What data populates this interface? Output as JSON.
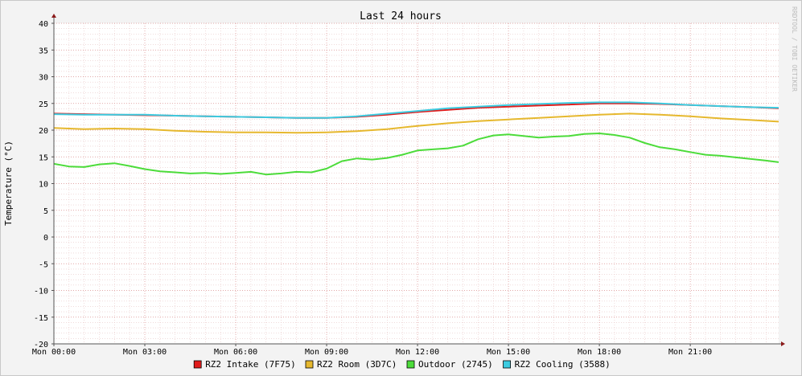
{
  "chart_data": {
    "type": "line",
    "title": "Last 24 hours",
    "ylabel": "Temperature (°C)",
    "xlabel": "",
    "watermark": "RRDTOOL / TOBI OETIKER",
    "ylim": [
      -20,
      40
    ],
    "xlim": [
      0,
      1435
    ],
    "y_ticks": [
      "40",
      "35",
      "30",
      "25",
      "20",
      "15",
      "10",
      "5",
      "0",
      "-5",
      "-10",
      "-15",
      "-20"
    ],
    "x_ticks": [
      {
        "at": 0,
        "label": "Mon 00:00"
      },
      {
        "at": 180,
        "label": "Mon 03:00"
      },
      {
        "at": 360,
        "label": "Mon 06:00"
      },
      {
        "at": 540,
        "label": "Mon 09:00"
      },
      {
        "at": 720,
        "label": "Mon 12:00"
      },
      {
        "at": 900,
        "label": "Mon 15:00"
      },
      {
        "at": 1080,
        "label": "Mon 18:00"
      },
      {
        "at": 1260,
        "label": "Mon 21:00"
      }
    ],
    "grid": true,
    "legend_position": "bottom",
    "series": [
      {
        "name": "RZ2 Intake (7F75)",
        "color": "#e11b1b",
        "x": [
          0,
          60,
          120,
          180,
          240,
          300,
          360,
          420,
          480,
          540,
          600,
          660,
          720,
          780,
          840,
          900,
          960,
          1020,
          1080,
          1140,
          1200,
          1260,
          1320,
          1380,
          1435
        ],
        "values": [
          23.1,
          23.0,
          22.9,
          22.8,
          22.7,
          22.6,
          22.5,
          22.4,
          22.3,
          22.3,
          22.5,
          22.9,
          23.4,
          23.8,
          24.2,
          24.4,
          24.6,
          24.8,
          25.0,
          25.0,
          24.9,
          24.7,
          24.5,
          24.3,
          24.1
        ]
      },
      {
        "name": "RZ2 Room (3D7C)",
        "color": "#e6b82e",
        "x": [
          0,
          60,
          120,
          180,
          240,
          300,
          360,
          420,
          480,
          540,
          600,
          660,
          720,
          780,
          840,
          900,
          960,
          1020,
          1080,
          1140,
          1200,
          1260,
          1320,
          1380,
          1435
        ],
        "values": [
          20.4,
          20.2,
          20.3,
          20.2,
          19.9,
          19.7,
          19.6,
          19.6,
          19.5,
          19.6,
          19.8,
          20.2,
          20.8,
          21.3,
          21.7,
          22.0,
          22.3,
          22.6,
          22.9,
          23.1,
          22.9,
          22.6,
          22.2,
          21.9,
          21.6
        ]
      },
      {
        "name": "Outdoor (2745)",
        "color": "#4cdc3a",
        "x": [
          0,
          30,
          60,
          90,
          120,
          150,
          180,
          210,
          240,
          270,
          300,
          330,
          360,
          390,
          420,
          450,
          480,
          510,
          540,
          570,
          600,
          630,
          660,
          690,
          720,
          750,
          780,
          810,
          840,
          870,
          900,
          930,
          960,
          990,
          1020,
          1050,
          1080,
          1110,
          1140,
          1170,
          1200,
          1230,
          1260,
          1290,
          1320,
          1350,
          1380,
          1410,
          1435
        ],
        "values": [
          13.7,
          13.2,
          13.1,
          13.6,
          13.8,
          13.3,
          12.7,
          12.3,
          12.1,
          11.9,
          12.0,
          11.8,
          12.0,
          12.2,
          11.7,
          11.9,
          12.2,
          12.1,
          12.8,
          14.2,
          14.7,
          14.5,
          14.8,
          15.4,
          16.2,
          16.4,
          16.6,
          17.1,
          18.3,
          19.0,
          19.2,
          18.9,
          18.6,
          18.8,
          18.9,
          19.3,
          19.4,
          19.1,
          18.6,
          17.6,
          16.8,
          16.4,
          15.9,
          15.4,
          15.2,
          14.9,
          14.6,
          14.3,
          14.0
        ]
      },
      {
        "name": "RZ2 Cooling (3588)",
        "color": "#3ccbe0",
        "x": [
          0,
          60,
          120,
          180,
          240,
          300,
          360,
          420,
          480,
          540,
          600,
          660,
          720,
          780,
          840,
          900,
          960,
          1020,
          1080,
          1140,
          1200,
          1260,
          1320,
          1380,
          1435
        ],
        "values": [
          23.0,
          22.9,
          22.9,
          22.9,
          22.7,
          22.6,
          22.5,
          22.4,
          22.3,
          22.3,
          22.6,
          23.1,
          23.6,
          24.1,
          24.4,
          24.7,
          24.9,
          25.1,
          25.2,
          25.2,
          25.0,
          24.7,
          24.5,
          24.3,
          24.2
        ]
      }
    ]
  }
}
